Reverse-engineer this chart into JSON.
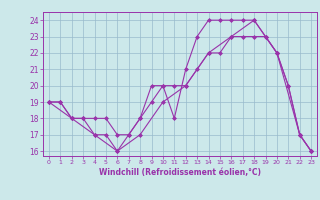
{
  "xlabel": "Windchill (Refroidissement éolien,°C)",
  "xlim_min": -0.5,
  "xlim_max": 23.5,
  "ylim_min": 15.7,
  "ylim_max": 24.5,
  "xticks": [
    0,
    1,
    2,
    3,
    4,
    5,
    6,
    7,
    8,
    9,
    10,
    11,
    12,
    13,
    14,
    15,
    16,
    17,
    18,
    19,
    20,
    21,
    22,
    23
  ],
  "yticks": [
    16,
    17,
    18,
    19,
    20,
    21,
    22,
    23,
    24
  ],
  "bg_color": "#cce8ea",
  "line_color": "#9933aa",
  "grid_color": "#99bbcc",
  "line1_x": [
    0,
    1,
    2,
    3,
    4,
    5,
    6,
    7,
    8,
    9,
    10,
    11,
    12,
    13,
    14,
    15,
    16,
    17,
    18,
    19,
    20,
    21,
    22,
    23
  ],
  "line1_y": [
    19,
    19,
    18,
    18,
    18,
    18,
    17,
    17,
    18,
    20,
    20,
    18,
    21,
    23,
    24,
    24,
    24,
    24,
    24,
    23,
    22,
    20,
    17,
    16
  ],
  "line2_x": [
    0,
    1,
    2,
    3,
    4,
    5,
    6,
    7,
    8,
    9,
    10,
    11,
    12,
    13,
    14,
    15,
    16,
    17,
    18,
    19,
    20,
    21,
    22,
    23
  ],
  "line2_y": [
    19,
    19,
    18,
    18,
    17,
    17,
    16,
    17,
    18,
    19,
    20,
    20,
    20,
    21,
    22,
    22,
    23,
    23,
    23,
    23,
    22,
    20,
    17,
    16
  ],
  "line3_x": [
    0,
    2,
    4,
    6,
    8,
    10,
    12,
    14,
    16,
    18,
    20,
    22,
    23
  ],
  "line3_y": [
    19,
    18,
    17,
    16,
    17,
    19,
    20,
    22,
    23,
    24,
    22,
    17,
    16
  ]
}
